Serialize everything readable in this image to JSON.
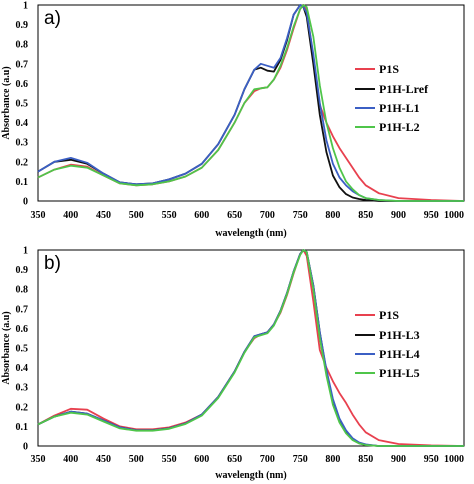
{
  "chart_data": [
    {
      "type": "line",
      "panel_label": "a)",
      "xlabel": "wavelength (nm)",
      "ylabel": "Absorbance (a.u)",
      "xlim": [
        350,
        1000
      ],
      "ylim": [
        0,
        1
      ],
      "x_ticks": [
        "350",
        "400",
        "450",
        "500",
        "550",
        "600",
        "650",
        "700",
        "750",
        "800",
        "850",
        "900",
        "950",
        "1000"
      ],
      "y_ticks": [
        "0",
        "0.1",
        "0.2",
        "0.3",
        "0.4",
        "0.5",
        "0.6",
        "0.7",
        "0.8",
        "0.9",
        "1"
      ],
      "legend_position": "right",
      "series": [
        {
          "name": "P1S",
          "color": "#e8414f",
          "x": [
            350,
            375,
            400,
            425,
            450,
            475,
            500,
            525,
            550,
            575,
            600,
            625,
            650,
            665,
            680,
            690,
            700,
            710,
            720,
            730,
            740,
            750,
            755,
            760,
            770,
            780,
            790,
            800,
            810,
            820,
            830,
            840,
            850,
            870,
            900,
            950,
            1000
          ],
          "y": [
            0.12,
            0.16,
            0.185,
            0.175,
            0.13,
            0.09,
            0.08,
            0.085,
            0.1,
            0.125,
            0.17,
            0.26,
            0.4,
            0.5,
            0.56,
            0.575,
            0.58,
            0.62,
            0.68,
            0.77,
            0.88,
            0.98,
            1.0,
            0.97,
            0.74,
            0.49,
            0.4,
            0.33,
            0.27,
            0.22,
            0.17,
            0.12,
            0.08,
            0.04,
            0.015,
            0.005,
            0.0
          ]
        },
        {
          "name": "P1H-Lref",
          "color": "#111111",
          "x": [
            350,
            375,
            400,
            425,
            450,
            475,
            500,
            525,
            550,
            575,
            600,
            625,
            650,
            665,
            680,
            690,
            700,
            710,
            720,
            730,
            740,
            750,
            755,
            760,
            770,
            780,
            790,
            800,
            810,
            820,
            830,
            840,
            850,
            870,
            900,
            950,
            1000
          ],
          "y": [
            0.15,
            0.2,
            0.21,
            0.19,
            0.14,
            0.095,
            0.085,
            0.09,
            0.11,
            0.14,
            0.19,
            0.29,
            0.44,
            0.57,
            0.67,
            0.68,
            0.665,
            0.66,
            0.72,
            0.82,
            0.95,
            1.0,
            0.99,
            0.94,
            0.7,
            0.44,
            0.25,
            0.13,
            0.07,
            0.035,
            0.018,
            0.01,
            0.005,
            0.0,
            0.0,
            0.0,
            0.0
          ]
        },
        {
          "name": "P1H-L1",
          "color": "#3b5fc4",
          "x": [
            350,
            375,
            400,
            425,
            450,
            475,
            500,
            525,
            550,
            575,
            600,
            625,
            650,
            665,
            680,
            690,
            700,
            710,
            720,
            730,
            740,
            750,
            755,
            760,
            770,
            780,
            790,
            800,
            810,
            820,
            830,
            840,
            850,
            870,
            900,
            950,
            1000
          ],
          "y": [
            0.15,
            0.2,
            0.22,
            0.195,
            0.14,
            0.095,
            0.085,
            0.09,
            0.11,
            0.14,
            0.19,
            0.29,
            0.44,
            0.57,
            0.67,
            0.7,
            0.69,
            0.68,
            0.73,
            0.83,
            0.95,
            1.0,
            0.99,
            0.96,
            0.75,
            0.5,
            0.31,
            0.19,
            0.12,
            0.08,
            0.05,
            0.03,
            0.015,
            0.005,
            0.0,
            0.0,
            0.0
          ]
        },
        {
          "name": "P1H-L2",
          "color": "#4fc54a",
          "x": [
            350,
            375,
            400,
            425,
            450,
            475,
            500,
            525,
            550,
            575,
            600,
            625,
            650,
            665,
            680,
            690,
            700,
            710,
            720,
            730,
            740,
            750,
            755,
            760,
            770,
            780,
            790,
            800,
            810,
            820,
            830,
            840,
            850,
            870,
            900,
            950,
            1000
          ],
          "y": [
            0.12,
            0.16,
            0.18,
            0.17,
            0.13,
            0.09,
            0.08,
            0.085,
            0.1,
            0.125,
            0.17,
            0.26,
            0.4,
            0.5,
            0.57,
            0.575,
            0.58,
            0.62,
            0.69,
            0.78,
            0.89,
            0.98,
            1.0,
            0.99,
            0.84,
            0.59,
            0.4,
            0.27,
            0.17,
            0.1,
            0.06,
            0.03,
            0.015,
            0.005,
            0.0,
            0.0,
            0.0
          ]
        }
      ]
    },
    {
      "type": "line",
      "panel_label": "b)",
      "xlabel": "wavelength (nm)",
      "ylabel": "Absorbance (a.u)",
      "xlim": [
        350,
        1000
      ],
      "ylim": [
        0,
        1
      ],
      "x_ticks": [
        "350",
        "400",
        "450",
        "500",
        "550",
        "600",
        "650",
        "700",
        "750",
        "800",
        "850",
        "900",
        "950",
        "1000"
      ],
      "y_ticks": [
        "0",
        "0.1",
        "0.2",
        "0.3",
        "0.4",
        "0.5",
        "0.6",
        "0.7",
        "0.8",
        "0.9",
        "1"
      ],
      "legend_position": "right",
      "series": [
        {
          "name": "P1S",
          "color": "#e8414f",
          "x": [
            350,
            375,
            400,
            425,
            450,
            475,
            500,
            525,
            550,
            575,
            600,
            625,
            650,
            665,
            680,
            690,
            700,
            710,
            720,
            730,
            740,
            750,
            755,
            760,
            770,
            780,
            790,
            800,
            810,
            820,
            830,
            840,
            850,
            870,
            900,
            950,
            1000
          ],
          "y": [
            0.11,
            0.155,
            0.19,
            0.185,
            0.14,
            0.1,
            0.085,
            0.085,
            0.095,
            0.12,
            0.16,
            0.25,
            0.38,
            0.48,
            0.55,
            0.57,
            0.58,
            0.62,
            0.68,
            0.77,
            0.88,
            0.98,
            1.0,
            0.97,
            0.74,
            0.49,
            0.4,
            0.33,
            0.27,
            0.22,
            0.16,
            0.11,
            0.07,
            0.03,
            0.01,
            0.003,
            0.0
          ]
        },
        {
          "name": "P1H-L3",
          "color": "#111111",
          "x": [
            350,
            375,
            400,
            425,
            450,
            475,
            500,
            525,
            550,
            575,
            600,
            625,
            650,
            665,
            680,
            690,
            700,
            710,
            720,
            730,
            740,
            750,
            755,
            760,
            770,
            780,
            790,
            800,
            810,
            820,
            830,
            840,
            850,
            870,
            900,
            950,
            1000
          ],
          "y": [
            0.11,
            0.15,
            0.175,
            0.165,
            0.13,
            0.095,
            0.08,
            0.08,
            0.09,
            0.115,
            0.16,
            0.25,
            0.38,
            0.48,
            0.56,
            0.57,
            0.58,
            0.62,
            0.69,
            0.78,
            0.89,
            0.98,
            1.0,
            0.99,
            0.82,
            0.58,
            0.38,
            0.23,
            0.13,
            0.07,
            0.035,
            0.015,
            0.006,
            0.0,
            0.0,
            0.0,
            0.0
          ]
        },
        {
          "name": "P1H-L4",
          "color": "#3b5fc4",
          "x": [
            350,
            375,
            400,
            425,
            450,
            475,
            500,
            525,
            550,
            575,
            600,
            625,
            650,
            665,
            680,
            690,
            700,
            710,
            720,
            730,
            740,
            750,
            755,
            760,
            770,
            780,
            790,
            800,
            810,
            820,
            830,
            840,
            850,
            870,
            900,
            950,
            1000
          ],
          "y": [
            0.11,
            0.15,
            0.175,
            0.165,
            0.13,
            0.095,
            0.08,
            0.08,
            0.09,
            0.115,
            0.16,
            0.25,
            0.38,
            0.48,
            0.56,
            0.57,
            0.58,
            0.62,
            0.69,
            0.78,
            0.89,
            0.98,
            1.0,
            0.99,
            0.82,
            0.58,
            0.39,
            0.24,
            0.14,
            0.08,
            0.04,
            0.018,
            0.008,
            0.0,
            0.0,
            0.0,
            0.0
          ]
        },
        {
          "name": "P1H-L5",
          "color": "#4fc54a",
          "x": [
            350,
            375,
            400,
            425,
            450,
            475,
            500,
            525,
            550,
            575,
            600,
            625,
            650,
            665,
            680,
            690,
            700,
            710,
            720,
            730,
            740,
            750,
            755,
            760,
            770,
            780,
            790,
            800,
            810,
            820,
            830,
            840,
            850,
            870,
            900,
            950,
            1000
          ],
          "y": [
            0.11,
            0.15,
            0.17,
            0.16,
            0.125,
            0.09,
            0.078,
            0.078,
            0.088,
            0.112,
            0.155,
            0.245,
            0.375,
            0.475,
            0.555,
            0.565,
            0.575,
            0.615,
            0.685,
            0.775,
            0.885,
            0.975,
            1.0,
            0.99,
            0.8,
            0.55,
            0.36,
            0.21,
            0.12,
            0.065,
            0.03,
            0.013,
            0.005,
            0.0,
            0.0,
            0.0,
            0.0
          ]
        }
      ]
    }
  ]
}
